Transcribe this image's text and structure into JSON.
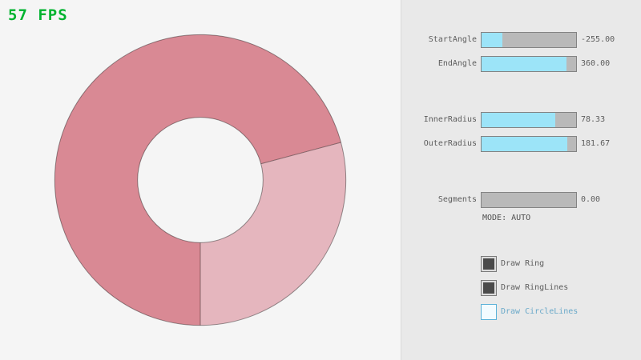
{
  "fps": {
    "label": "57 FPS"
  },
  "ring": {
    "sector_dark_color": "#d98994",
    "sector_light_color": "#e5b6be",
    "outline_color": "#000000",
    "outline_opacity": "0.4"
  },
  "sliders": [
    {
      "label": "StartAngle",
      "value": "-255.00",
      "fill_pct": 21.7
    },
    {
      "label": "EndAngle",
      "value": "360.00",
      "fill_pct": 90.0
    },
    {
      "label": "InnerRadius",
      "value": "78.33",
      "fill_pct": 78.3
    },
    {
      "label": "OuterRadius",
      "value": "181.67",
      "fill_pct": 90.8
    },
    {
      "label": "Segments",
      "value": "0.00",
      "fill_pct": 0
    }
  ],
  "mode": {
    "label": "MODE: AUTO"
  },
  "checkboxes": [
    {
      "label": "Draw Ring",
      "checked": true
    },
    {
      "label": "Draw RingLines",
      "checked": true
    },
    {
      "label": "Draw CircleLines",
      "checked": false
    }
  ],
  "colors": {
    "background": "#f5f5f5",
    "panel_background": "#e9e9e9",
    "fps_green": "#00b32f",
    "slider_fill": "#9ce4f8",
    "slider_track": "#b9b9b9",
    "slider_border": "#838383",
    "label_text": "#5d5d5d",
    "checkbox_checked": "#4a4a4a",
    "focus_border_blue": "#5bb2d9",
    "focus_text_blue": "#6aa9c9"
  }
}
